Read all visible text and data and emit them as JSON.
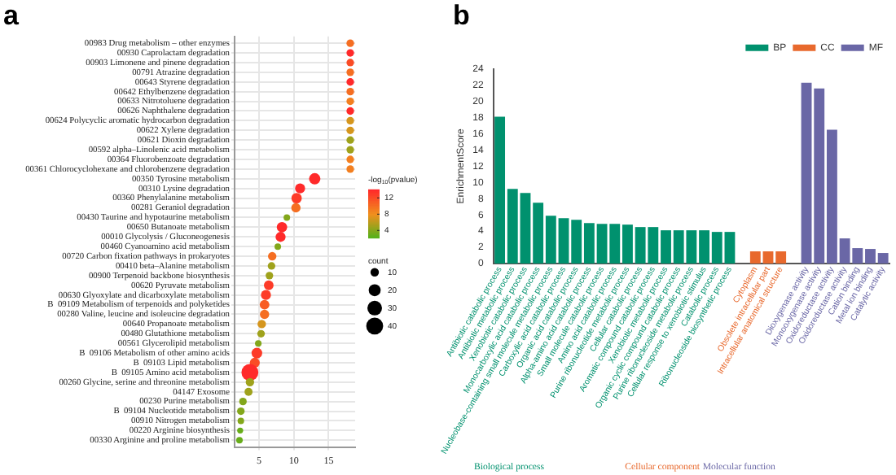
{
  "chart_data": [
    {
      "type": "bubble",
      "title": "a",
      "orientation": "horizontal",
      "categories": [
        "00983 Drug metabolism – other enzymes",
        "00930 Caprolactam degradation",
        "00903 Limonene and pinene degradation",
        "00791 Atrazine degradation",
        "00643 Styrene degradation",
        "00642 Ethylbenzene degradation",
        "00633 Nitrotoluene degradation",
        "00626 Naphthalene degradation",
        "00624 Polycyclic aromatic hydrocarbon degradation",
        "00622 Xylene degradation",
        "00621 Dioxin degradation",
        "00592 alpha–Linolenic acid metabolism",
        "00364 Fluorobenzoate degradation",
        "00361 Chlorocyclohexane and chlorobenzene degradation",
        "00350 Tyrosine metabolism",
        "00310 Lysine degradation",
        "00360 Phenylalanine metabolism",
        "00281 Geraniol degradation",
        "00430 Taurine and hypotaurine metabolism",
        "00650 Butanoate metabolism",
        "00010 Glycolysis / Gluconeogenesis",
        "00460 Cyanoamino acid metabolism",
        "00720 Carbon fixation pathways in prokaryotes",
        "00410 beta–Alanine metabolism",
        "00900 Terpenoid backbone biosynthesis",
        "00620 Pyruvate metabolism",
        "00630 Glyoxylate and dicarboxylate metabolism",
        "B  09109 Metabolism of terpenoids and polyketides",
        "00280 Valine, leucine and isoleucine degradation",
        "00640 Propanoate metabolism",
        "00480 Glutathione metabolism",
        "00561 Glycerolipid metabolism",
        "B  09106 Metabolism of other amino acids",
        "B  09103 Lipid metabolism",
        "B  09105 Amino acid metabolism",
        "00260 Glycine, serine and threonine metabolism",
        "04147 Exosome",
        "00230 Purine metabolism",
        "B  09104 Nucleotide metabolism",
        "00910 Nitrogen metabolism",
        "00220 Arginine biosynthesis",
        "00330 Arginine and proline metabolism"
      ],
      "values": [
        18.1,
        18.1,
        18.1,
        18.1,
        18.1,
        18.1,
        18.1,
        18.1,
        18.1,
        18.1,
        18.1,
        18.1,
        18.1,
        18.1,
        13.0,
        10.9,
        10.4,
        10.3,
        9.0,
        8.3,
        8.1,
        7.7,
        6.9,
        6.8,
        6.5,
        6.4,
        6.0,
        5.8,
        5.8,
        5.4,
        5.3,
        4.9,
        4.7,
        4.4,
        3.7,
        3.7,
        3.5,
        2.7,
        2.4,
        2.4,
        2.3,
        2.2
      ],
      "sizes": [
        8,
        8,
        8,
        8,
        8,
        8,
        8,
        8,
        8,
        8,
        8,
        8,
        8,
        8,
        18,
        14,
        15,
        12,
        6,
        15,
        14,
        6,
        10,
        8,
        8,
        13,
        14,
        13,
        12,
        10,
        8,
        6,
        16,
        14,
        40,
        10,
        9,
        8,
        8,
        6,
        5,
        6
      ],
      "cvalues": [
        10,
        14,
        12,
        10,
        14,
        10,
        9,
        14,
        7,
        7,
        5,
        5,
        9,
        9,
        14,
        14,
        13,
        10,
        4,
        14,
        14,
        4,
        10,
        5,
        5,
        13,
        13,
        11,
        10,
        7,
        5,
        4,
        13,
        12,
        14,
        5,
        5,
        4,
        4,
        4,
        3,
        3
      ],
      "clim": [
        2,
        14
      ],
      "cticks": [
        4,
        8,
        12
      ],
      "clabel": "-log$_{10}$(pvalue)",
      "size_legend": [
        10,
        20,
        30,
        40
      ],
      "legend_title": "count",
      "xlim": [
        1.5,
        18.8
      ],
      "xticks": [
        5,
        10,
        15
      ],
      "grid": true
    },
    {
      "type": "bar",
      "title": "b",
      "ylabel": "EnrichmentScore",
      "categories": [
        "Antibiotic catabolic process",
        "Antibiotic metabolic process",
        "Xenobiotic catabolic process",
        "Monocarboxylic acid catabolic process",
        "Nucleobase-containing small molecule metabolic process",
        "Carboxylic acid catabolic process",
        "Organic acid catabolic process",
        "Alpha-amino acid catabolic process",
        "Small molecule catabolic process",
        "Amino acid catabolic process",
        "Purine ribonucleotide metabolic process",
        "Cellular catabolic process",
        "Aromatic compound catabolic process",
        "Xenobiotic metabolic process",
        "Organic cyclic compound catabolic process",
        "Purine ribonucleoside metabolic process",
        "Cellular response to xenobiotic stimulus",
        "Catabolic process",
        "Ribonucleoside biosynthetic process",
        null,
        "Cytoplasm",
        "Obsolete intracellular part",
        "Intracellular anatomical structure",
        null,
        "Dioxygenase activity",
        "Monooxygenase activity",
        "Oxidoreductase activity",
        "Oxidoreductase activity",
        "Cation binding",
        "Metal ion binding",
        "Catalytic activity"
      ],
      "series": [
        {
          "name": "BP",
          "color": "#00916e",
          "values": [
            18.1,
            9.2,
            8.7,
            7.5,
            5.9,
            5.6,
            5.4,
            5.0,
            4.9,
            4.9,
            4.8,
            4.5,
            4.5,
            4.1,
            4.1,
            4.1,
            4.1,
            3.9,
            3.9,
            null,
            null,
            null,
            null,
            null,
            null,
            null,
            null,
            null,
            null,
            null,
            null
          ]
        },
        {
          "name": "CC",
          "color": "#e8692d",
          "values": [
            null,
            null,
            null,
            null,
            null,
            null,
            null,
            null,
            null,
            null,
            null,
            null,
            null,
            null,
            null,
            null,
            null,
            null,
            null,
            null,
            1.5,
            1.5,
            1.5,
            null,
            null,
            null,
            null,
            null,
            null,
            null,
            null
          ]
        },
        {
          "name": "MF",
          "color": "#6a67a6",
          "values": [
            null,
            null,
            null,
            null,
            null,
            null,
            null,
            null,
            null,
            null,
            null,
            null,
            null,
            null,
            null,
            null,
            null,
            null,
            null,
            null,
            null,
            null,
            null,
            null,
            22.3,
            21.6,
            16.5,
            3.1,
            1.9,
            1.8,
            1.3
          ]
        }
      ],
      "ylim": [
        0,
        24
      ],
      "yticks": [
        0,
        2,
        4,
        6,
        8,
        10,
        12,
        14,
        16,
        18,
        20,
        22,
        24
      ],
      "legend": "top right",
      "grid": false,
      "annotations": [
        "Biological process",
        "Cellular component",
        "Molecular function"
      ]
    }
  ]
}
